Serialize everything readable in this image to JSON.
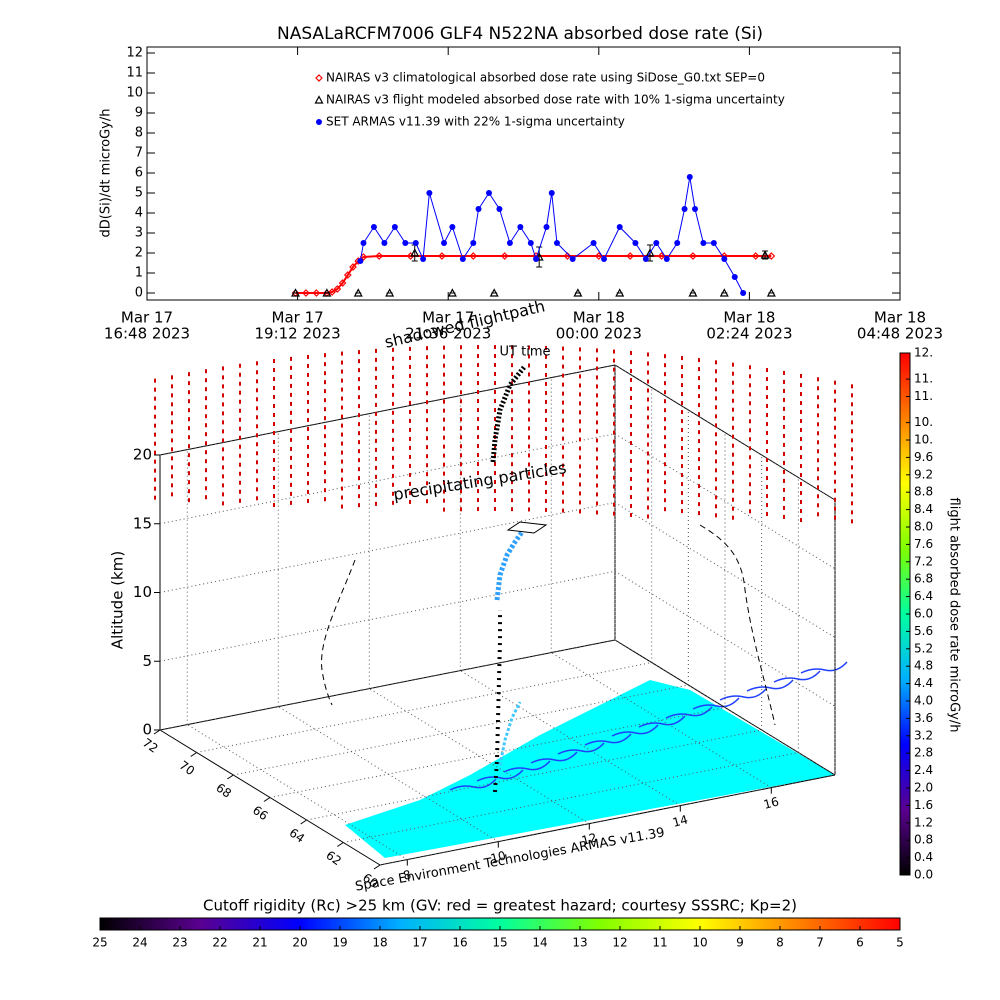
{
  "chart_data": [
    {
      "type": "line",
      "title": "NASALaRCFM7006  GLF4 N522NA absorbed dose rate (Si)",
      "ylabel": "dD(Si)/dt microGy/h",
      "xlim": [
        "2023-03-17T16:48",
        "2023-03-18T04:48"
      ],
      "xticks": [
        {
          "value": "2023-03-17T16:48",
          "label": [
            "Mar 17",
            "16:48 2023"
          ]
        },
        {
          "value": "2023-03-17T19:12",
          "label": [
            "Mar 17",
            "19:12 2023"
          ]
        },
        {
          "value": "2023-03-17T21:36",
          "label": [
            "Mar 17",
            "21:36 2023"
          ]
        },
        {
          "value": "2023-03-18T00:00",
          "label": [
            "Mar 18",
            "00:00 2023"
          ]
        },
        {
          "value": "2023-03-18T02:24",
          "label": [
            "Mar 18",
            "02:24 2023"
          ]
        },
        {
          "value": "2023-03-18T04:48",
          "label": [
            "Mar 18",
            "04:48 2023"
          ]
        }
      ],
      "ylim": [
        -0.35,
        12.3
      ],
      "yticks": [
        0,
        1,
        2,
        3,
        4,
        5,
        6,
        7,
        8,
        9,
        10,
        11,
        12
      ],
      "series": [
        {
          "name": "NAIRAS v3 climatological absorbed dose rate using SiDose_G0.txt SEP=0",
          "color": "#ff0000",
          "marker": "diamond",
          "x": [
            "2023-03-17T19:10",
            "2023-03-17T19:20",
            "2023-03-17T19:30",
            "2023-03-17T19:40",
            "2023-03-17T19:45",
            "2023-03-17T19:50",
            "2023-03-17T19:55",
            "2023-03-17T20:00",
            "2023-03-17T20:05",
            "2023-03-17T20:10",
            "2023-03-17T20:15",
            "2023-03-17T20:30",
            "2023-03-17T21:00",
            "2023-03-17T21:30",
            "2023-03-17T22:00",
            "2023-03-17T22:30",
            "2023-03-17T23:00",
            "2023-03-17T23:30",
            "2023-03-18T00:00",
            "2023-03-18T00:30",
            "2023-03-18T01:00",
            "2023-03-18T01:30",
            "2023-03-18T02:00",
            "2023-03-18T02:30",
            "2023-03-18T02:45"
          ],
          "values": [
            0,
            0,
            0,
            0,
            0.05,
            0.2,
            0.5,
            0.9,
            1.3,
            1.6,
            1.8,
            1.85,
            1.85,
            1.85,
            1.85,
            1.85,
            1.85,
            1.85,
            1.85,
            1.85,
            1.85,
            1.85,
            1.85,
            1.85,
            1.85
          ]
        },
        {
          "name": "NAIRAS v3 flight modeled absorbed dose rate with 10% 1-sigma uncertainty",
          "color": "#000000",
          "marker": "triangle",
          "x": [
            "2023-03-17T19:10",
            "2023-03-17T19:40",
            "2023-03-17T20:10",
            "2023-03-17T20:40",
            "2023-03-17T21:04",
            "2023-03-17T21:40",
            "2023-03-17T22:20",
            "2023-03-17T23:03",
            "2023-03-17T23:40",
            "2023-03-18T00:20",
            "2023-03-18T00:49",
            "2023-03-18T01:30",
            "2023-03-18T02:00",
            "2023-03-18T02:39",
            "2023-03-18T02:45"
          ],
          "values": [
            0,
            0,
            0,
            0,
            2.0,
            0,
            0,
            1.8,
            0,
            0,
            2.0,
            0,
            0,
            1.9,
            0
          ],
          "errors": [
            0,
            0,
            0,
            0,
            0.4,
            0,
            0,
            0.5,
            0,
            0,
            0.4,
            0,
            0,
            0.2,
            0
          ]
        },
        {
          "name": "SET ARMAS v11.39 with 22% 1-sigma uncertainty",
          "color": "#0000ff",
          "marker": "circle",
          "x": [
            "2023-03-17T20:12",
            "2023-03-17T20:15",
            "2023-03-17T20:25",
            "2023-03-17T20:35",
            "2023-03-17T20:45",
            "2023-03-17T20:55",
            "2023-03-17T21:05",
            "2023-03-17T21:12",
            "2023-03-17T21:18",
            "2023-03-17T21:32",
            "2023-03-17T21:40",
            "2023-03-17T21:50",
            "2023-03-17T22:00",
            "2023-03-17T22:05",
            "2023-03-17T22:15",
            "2023-03-17T22:25",
            "2023-03-17T22:35",
            "2023-03-17T22:45",
            "2023-03-17T22:55",
            "2023-03-17T23:00",
            "2023-03-17T23:10",
            "2023-03-17T23:15",
            "2023-03-17T23:20",
            "2023-03-17T23:35",
            "2023-03-17T23:55",
            "2023-03-18T00:05",
            "2023-03-18T00:20",
            "2023-03-18T00:35",
            "2023-03-18T00:45",
            "2023-03-18T00:55",
            "2023-03-18T01:05",
            "2023-03-18T01:15",
            "2023-03-18T01:22",
            "2023-03-18T01:27",
            "2023-03-18T01:32",
            "2023-03-18T01:40",
            "2023-03-18T01:50",
            "2023-03-18T02:00",
            "2023-03-18T02:10",
            "2023-03-18T02:18"
          ],
          "values": [
            1.6,
            2.5,
            3.3,
            2.5,
            3.3,
            2.5,
            2.5,
            1.7,
            5.0,
            2.5,
            3.3,
            1.7,
            2.5,
            4.2,
            5.0,
            4.2,
            2.5,
            3.3,
            2.5,
            1.7,
            3.3,
            5.0,
            2.5,
            1.7,
            2.5,
            1.7,
            3.3,
            2.5,
            1.7,
            2.5,
            1.7,
            2.5,
            4.2,
            5.8,
            4.2,
            2.5,
            2.5,
            1.7,
            0.8,
            0
          ]
        }
      ]
    },
    {
      "type": "surface3d",
      "zlabel": "Altitude (km)",
      "zlim": [
        0,
        20
      ],
      "zticks": [
        0,
        5,
        10,
        15,
        20
      ],
      "latlim": [
        72,
        60
      ],
      "latticks": [
        72,
        70,
        68,
        66,
        64,
        62,
        60
      ],
      "lonlim": [
        7.4,
        17.4
      ],
      "lonticks": [
        8,
        10,
        12,
        14,
        16
      ],
      "annotations": [
        "shadowed flightpath",
        "UT time",
        "precipitating particles",
        "Space Environment Technologies ARMAS v11.39"
      ],
      "colorbar": {
        "label": "flight absorbed dose rate microGy/h",
        "lim": [
          0,
          12
        ],
        "ticks": [
          {
            "value": 0,
            "label": "0.0"
          },
          0.4,
          0.8,
          1.2,
          1.6,
          {
            "value": 2,
            "label": "2.0"
          },
          2.4,
          2.8,
          3.2,
          3.6,
          {
            "value": 4,
            "label": "4.0"
          },
          4.4,
          4.8,
          5.2,
          5.6,
          {
            "value": 6,
            "label": "6.0"
          },
          6.4,
          6.8,
          7.2,
          7.6,
          {
            "value": 8,
            "label": "8.0"
          },
          8.4,
          8.8,
          9.2,
          9.6,
          {
            "value": 10.0,
            "label": "10."
          },
          {
            "value": 10.4,
            "label": "10."
          },
          {
            "value": 11.0,
            "label": "11."
          },
          {
            "value": 11.4,
            "label": "11."
          },
          {
            "value": 12,
            "label": "12."
          }
        ],
        "colors": [
          "#000000",
          "#5a0090",
          "#0000ff",
          "#00b0ff",
          "#00ffa0",
          "#80ff00",
          "#ffff00",
          "#ff8000",
          "#ff0000"
        ]
      },
      "colorbar2": {
        "label": "Cutoff rigidity (Rc) >25 km (GV: red = greatest hazard; courtesy SSSRC; Kp=2)",
        "lim": [
          25,
          5
        ],
        "ticks": [
          25,
          24,
          23,
          22,
          21,
          20,
          19,
          18,
          17,
          16,
          15,
          14,
          13,
          12,
          11,
          10,
          9,
          8,
          7,
          6,
          5
        ],
        "colors": [
          "#000000",
          "#5a0090",
          "#0000ff",
          "#00b0ff",
          "#00ffa0",
          "#80ff00",
          "#ffff00",
          "#ff8000",
          "#ff0000"
        ]
      }
    }
  ]
}
